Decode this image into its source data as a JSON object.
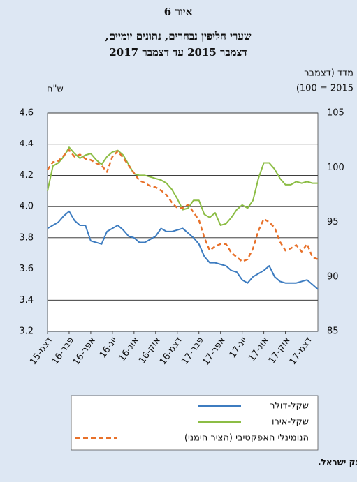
{
  "chart_data": {
    "type": "line",
    "title": "איור 6",
    "subtitle": [
      "שערי חליפין נבחרים, נתונים יומיים,",
      "דצמבר 2015 עד דצמבר 2017"
    ],
    "y_label": "ש\"ח",
    "y2_label": [
      "מדד (דצמבר",
      "2015 = 100)"
    ],
    "categories": [
      "דצמ-15",
      null,
      null,
      null,
      "פבר-16",
      null,
      null,
      null,
      "אפר-16",
      null,
      null,
      null,
      "יונ-16",
      null,
      null,
      null,
      "אוג-16",
      null,
      null,
      null,
      "אוק-16",
      null,
      null,
      null,
      "דצמ-16",
      null,
      null,
      null,
      "פבר-17",
      null,
      null,
      null,
      "אפר-17",
      null,
      null,
      null,
      "יונ-17",
      null,
      null,
      null,
      "אוג-17",
      null,
      null,
      null,
      "אוק-17",
      null,
      null,
      null,
      "דצמ-17",
      null,
      null
    ],
    "series": [
      {
        "name": "שקל-דולר",
        "color": "#3d7cc0",
        "dashed": false,
        "values": [
          3.86,
          3.88,
          3.9,
          3.94,
          3.97,
          3.91,
          3.88,
          3.88,
          3.78,
          3.77,
          3.76,
          3.84,
          3.86,
          3.88,
          3.85,
          3.81,
          3.8,
          3.77,
          3.77,
          3.79,
          3.81,
          3.86,
          3.84,
          3.84,
          3.85,
          3.86,
          3.83,
          3.8,
          3.76,
          3.68,
          3.64,
          3.64,
          3.63,
          3.62,
          3.59,
          3.58,
          3.53,
          3.51,
          3.55,
          3.57,
          3.59,
          3.62,
          3.55,
          3.52,
          3.51,
          3.51,
          3.51,
          3.52,
          3.53,
          3.5,
          3.47
        ]
      },
      {
        "name": "שקל-אירו",
        "color": "#8cbd45",
        "dashed": false,
        "values": [
          4.1,
          4.26,
          4.28,
          4.32,
          4.38,
          4.34,
          4.31,
          4.33,
          4.34,
          4.3,
          4.27,
          4.32,
          4.35,
          4.36,
          4.33,
          4.27,
          4.21,
          4.2,
          4.2,
          4.19,
          4.18,
          4.17,
          4.15,
          4.11,
          4.05,
          3.98,
          3.99,
          4.04,
          4.04,
          3.95,
          3.93,
          3.96,
          3.88,
          3.89,
          3.93,
          3.98,
          4.01,
          3.99,
          4.04,
          4.18,
          4.28,
          4.28,
          4.24,
          4.18,
          4.14,
          4.14,
          4.16,
          4.15,
          4.16,
          4.15,
          4.15
        ]
      },
      {
        "name": "הנומינלי האפקטיבי (הציר הימני)",
        "color": "#e8712a",
        "dashed": true,
        "axis": "y2",
        "values": [
          99.8,
          100.5,
          100.6,
          101.1,
          101.6,
          101.0,
          101.2,
          100.8,
          100.7,
          100.4,
          100.2,
          99.6,
          101.0,
          101.5,
          100.9,
          100.2,
          99.5,
          98.8,
          98.6,
          98.3,
          98.2,
          97.9,
          97.5,
          96.8,
          96.3,
          96.3,
          96.6,
          95.9,
          95.2,
          93.6,
          92.4,
          92.8,
          93.0,
          93.0,
          92.2,
          91.8,
          91.4,
          91.6,
          92.6,
          94.2,
          95.3,
          95.0,
          94.5,
          93.2,
          92.4,
          92.6,
          92.9,
          92.3,
          93.0,
          91.8,
          91.6
        ]
      }
    ],
    "ylim": [
      3.2,
      4.6
    ],
    "yticks": [
      {
        "value": 3.2,
        "label": "3.2"
      },
      {
        "value": 3.4,
        "label": "3.4"
      },
      {
        "value": 3.6,
        "label": "3.6"
      },
      {
        "value": 3.8,
        "label": "3.8"
      },
      {
        "value": 4.0,
        "label": "4.0"
      },
      {
        "value": 4.2,
        "label": "4.2"
      },
      {
        "value": 4.4,
        "label": "4.4"
      },
      {
        "value": 4.6,
        "label": "4.6"
      }
    ],
    "y2lim": [
      85,
      105
    ],
    "y2ticks": [
      85,
      90,
      95,
      100,
      105
    ],
    "grid": true,
    "legend": "bottom",
    "source": "המקור: עיבודי בנק ישראל."
  }
}
